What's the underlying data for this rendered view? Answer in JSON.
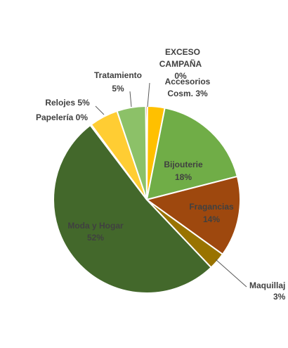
{
  "chart_data": {
    "type": "pie",
    "title": "",
    "slices": [
      {
        "label": "EXCESO CAMPAÑA",
        "percent_label": "0%",
        "value": 0.3,
        "color": "#C00000"
      },
      {
        "label": "Accesorios Cosm.",
        "percent_label": "3%",
        "value": 3,
        "color": "#FFC000"
      },
      {
        "label": "Bijouterie",
        "percent_label": "18%",
        "value": 18,
        "color": "#70AD47"
      },
      {
        "label": "Fragancias",
        "percent_label": "14%",
        "value": 14,
        "color": "#9E480E"
      },
      {
        "label": "Maquillaj",
        "percent_label": "3%",
        "value": 3,
        "color": "#997300"
      },
      {
        "label": "Moda y Hogar",
        "percent_label": "52%",
        "value": 52,
        "color": "#43682B"
      },
      {
        "label": "Papelería",
        "percent_label": "0%",
        "value": 0.2,
        "color": "#FFE699"
      },
      {
        "label": "Relojes",
        "percent_label": "5%",
        "value": 5,
        "color": "#FFCD33"
      },
      {
        "label": "Tratamiento",
        "percent_label": "5%",
        "value": 5,
        "color": "#8CC168"
      }
    ]
  }
}
